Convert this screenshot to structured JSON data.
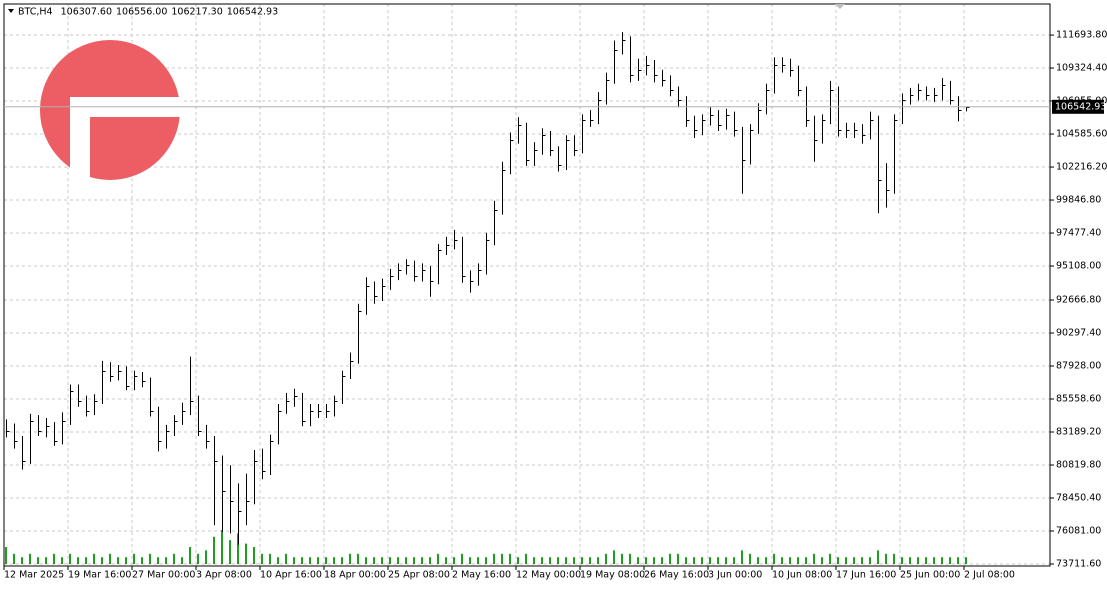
{
  "chart_data": {
    "type": "ohlc",
    "symbol": "BTC,H4",
    "header_values": [
      {
        "value": 106307.6,
        "label": "106307.60"
      },
      {
        "value": 106556,
        "label": "106556.00"
      },
      {
        "value": 106217.3,
        "label": "106217.30"
      },
      {
        "value": 106542.93,
        "label": "106542.93"
      }
    ],
    "categories": [
      "12 Mar 2025",
      null,
      null,
      null,
      null,
      null,
      null,
      null,
      "19 Mar 16:00",
      null,
      null,
      null,
      null,
      null,
      null,
      null,
      "27 Mar 00:00",
      null,
      null,
      null,
      null,
      null,
      null,
      null,
      "3 Apr 08:00",
      null,
      null,
      null,
      null,
      null,
      null,
      null,
      "10 Apr 16:00",
      null,
      null,
      null,
      null,
      null,
      null,
      null,
      "18 Apr 00:00",
      null,
      null,
      null,
      null,
      null,
      null,
      null,
      "25 Apr 08:00",
      null,
      null,
      null,
      null,
      null,
      null,
      null,
      "2 May 16:00",
      null,
      null,
      null,
      null,
      null,
      null,
      null,
      "12 May 00:00",
      null,
      null,
      null,
      null,
      null,
      null,
      null,
      "19 May 08:00",
      null,
      null,
      null,
      null,
      null,
      null,
      null,
      "26 May 16:00",
      null,
      null,
      null,
      null,
      null,
      null,
      null,
      "3 Jun 00:00",
      null,
      null,
      null,
      null,
      null,
      null,
      null,
      "10 Jun 08:00",
      null,
      null,
      null,
      null,
      null,
      null,
      null,
      "17 Jun 16:00",
      null,
      null,
      null,
      null,
      null,
      null,
      null,
      "25 Jun 00:00",
      null,
      null,
      null,
      null,
      null,
      null,
      null,
      "2 Jul 08:00"
    ],
    "high": [
      84100,
      83800,
      82900,
      84500,
      84400,
      84200,
      83900,
      84600,
      86600,
      86600,
      85800,
      85900,
      88300,
      88200,
      88000,
      87900,
      87600,
      87500,
      87100,
      85000,
      83700,
      84400,
      85300,
      88600,
      85800,
      83700,
      82900,
      81500,
      80800,
      79500,
      80200,
      81900,
      82000,
      83000,
      85200,
      86000,
      86300,
      86000,
      85200,
      85200,
      85200,
      85800,
      87600,
      88900,
      92400,
      94300,
      94000,
      94200,
      94900,
      95300,
      95600,
      95500,
      95300,
      95100,
      96700,
      97200,
      97700,
      97200,
      94800,
      95300,
      97500,
      99800,
      102600,
      104700,
      105800,
      105400,
      104000,
      105000,
      104800,
      103700,
      104500,
      104500,
      106000,
      106300,
      107600,
      109000,
      111300,
      111900,
      111600,
      110000,
      110200,
      109900,
      109200,
      108800,
      108000,
      107300,
      105900,
      106000,
      106500,
      106300,
      106400,
      106200,
      105100,
      105300,
      106800,
      108200,
      110100,
      110100,
      110000,
      109500,
      108000,
      105900,
      106000,
      108400,
      108000,
      105400,
      105400,
      105300,
      106200,
      105900,
      102500,
      106000,
      107500,
      107900,
      108200,
      108000,
      107900,
      108600,
      108400,
      107300,
      106556
    ],
    "low": [
      82800,
      82000,
      80500,
      80900,
      82900,
      82800,
      82200,
      82300,
      83700,
      85000,
      84300,
      84400,
      85200,
      86800,
      86900,
      86200,
      86200,
      86400,
      84300,
      81800,
      82000,
      82900,
      83700,
      84400,
      82900,
      82000,
      76500,
      76000,
      75900,
      75100,
      76500,
      78000,
      79800,
      80100,
      82300,
      84500,
      85000,
      83600,
      83600,
      84200,
      84200,
      84300,
      85200,
      87000,
      88100,
      91600,
      92400,
      92600,
      93400,
      94100,
      94500,
      94000,
      94000,
      92900,
      93800,
      95900,
      96300,
      93900,
      93200,
      93700,
      94500,
      96600,
      98800,
      101700,
      103900,
      102300,
      102300,
      103100,
      103000,
      101900,
      102000,
      103000,
      103200,
      105100,
      105300,
      106700,
      108200,
      110300,
      108300,
      108400,
      108800,
      108300,
      108000,
      107300,
      106500,
      105100,
      104300,
      104500,
      105200,
      104800,
      104900,
      104400,
      100300,
      102400,
      104600,
      106000,
      107500,
      109000,
      108700,
      107300,
      105100,
      102600,
      103900,
      105300,
      104400,
      104300,
      104300,
      103900,
      104200,
      98900,
      99300,
      100300,
      105300,
      106700,
      107000,
      107000,
      106900,
      107000,
      106700,
      105500,
      106217.3
    ],
    "close": [
      83278,
      82558,
      81120,
      83997,
      83278,
      83637,
      82558,
      83997,
      86155,
      85436,
      84716,
      85436,
      87594,
      87234,
      87594,
      86515,
      87234,
      86874,
      84716,
      82558,
      83278,
      83997,
      84716,
      85436,
      83278,
      82558,
      81120,
      78961,
      78242,
      77522,
      78242,
      81120,
      80400,
      82558,
      84716,
      85436,
      85795,
      83997,
      84716,
      84716,
      84716,
      85436,
      87234,
      88313,
      91910,
      93708,
      92989,
      93708,
      94428,
      94788,
      95147,
      94428,
      94788,
      94068,
      96226,
      96586,
      96946,
      94428,
      94068,
      94788,
      96946,
      99104,
      101982,
      104140,
      105219,
      102701,
      103421,
      104500,
      103421,
      102342,
      104140,
      103421,
      105579,
      105579,
      107018,
      108457,
      110615,
      111334,
      108816,
      109176,
      109536,
      108816,
      108457,
      107737,
      107018,
      105579,
      104860,
      105579,
      105939,
      105219,
      105939,
      104860,
      102701,
      104860,
      106298,
      107737,
      109536,
      109536,
      109176,
      107737,
      105579,
      104140,
      105579,
      107737,
      104860,
      104860,
      104860,
      104500,
      105579,
      101262,
      100543,
      105579,
      107018,
      107377,
      107737,
      107377,
      107377,
      108097,
      107018,
      106298,
      106542.93
    ],
    "volume": [
      5,
      3,
      2,
      3,
      2,
      2,
      3,
      2,
      3,
      2,
      2,
      3,
      2,
      3,
      2,
      2,
      3,
      2,
      3,
      2,
      2,
      3,
      2,
      5,
      3,
      4,
      8,
      10,
      7,
      9,
      6,
      5,
      3,
      3,
      2,
      3,
      2,
      2,
      2,
      2,
      2,
      2,
      2,
      3,
      3,
      2,
      2,
      2,
      2,
      2,
      2,
      2,
      2,
      2,
      3,
      2,
      2,
      3,
      2,
      2,
      2,
      3,
      3,
      3,
      2,
      3,
      2,
      2,
      2,
      2,
      2,
      2,
      2,
      2,
      2,
      3,
      4,
      3,
      3,
      2,
      2,
      2,
      2,
      3,
      3,
      2,
      2,
      2,
      2,
      2,
      2,
      2,
      4,
      3,
      2,
      2,
      3,
      2,
      2,
      2,
      2,
      3,
      2,
      3,
      2,
      2,
      2,
      2,
      2,
      4,
      3,
      3,
      2,
      2,
      2,
      2,
      2,
      2,
      2,
      2,
      2
    ],
    "color": "#000000",
    "volume_color": "#1e9e1e",
    "ylim": [
      73568,
      113924
    ],
    "yticks": [
      {
        "value": 111693.8,
        "label": "111693.80"
      },
      {
        "value": 109324.4,
        "label": "109324.40"
      },
      {
        "value": 106955,
        "label": "106955.00"
      },
      {
        "value": 104585.6,
        "label": "104585.60"
      },
      {
        "value": 102216.2,
        "label": "102216.20"
      },
      {
        "value": 99846.8,
        "label": "99846.80"
      },
      {
        "value": 97477.4,
        "label": "97477.40"
      },
      {
        "value": 95108,
        "label": "95108.00"
      },
      {
        "value": 92666.8,
        "label": "92666.80"
      },
      {
        "value": 90297.4,
        "label": "90297.40"
      },
      {
        "value": 87928,
        "label": "87928.00"
      },
      {
        "value": 85558.6,
        "label": "85558.60"
      },
      {
        "value": 83189.2,
        "label": "83189.20"
      },
      {
        "value": 80819.8,
        "label": "80819.80"
      },
      {
        "value": 78450.4,
        "label": "78450.40"
      },
      {
        "value": 76081,
        "label": "76081.00"
      },
      {
        "value": 73711.6,
        "label": "73711.60"
      }
    ],
    "last_price": 106542.93,
    "grid": true
  }
}
